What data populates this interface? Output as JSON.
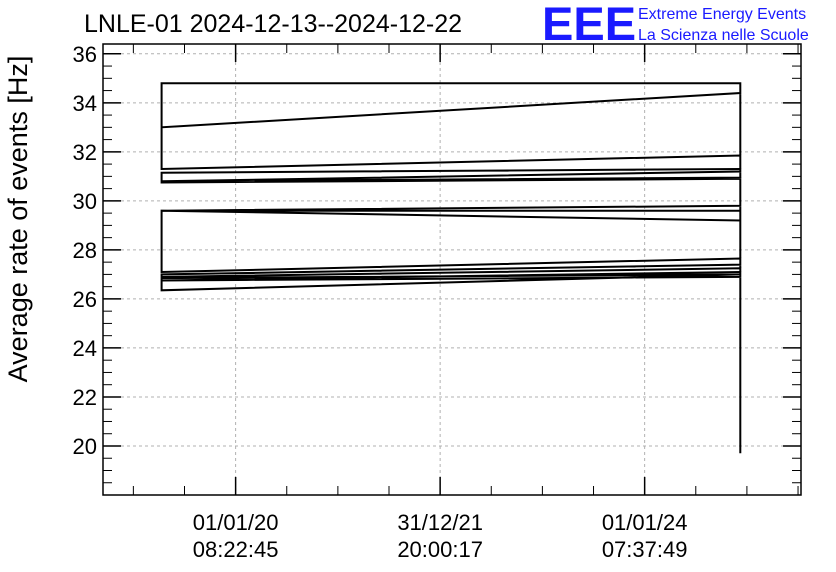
{
  "chart_data": {
    "type": "line",
    "title": "LNLE-01 2024-12-13--2024-12-22",
    "xlabel": "",
    "ylabel": "Average rate of events [Hz]",
    "ylim": [
      18,
      36.4
    ],
    "yticks": [
      20,
      22,
      24,
      26,
      28,
      30,
      32,
      34,
      36
    ],
    "xlim": [
      0,
      100
    ],
    "xticks": [
      {
        "x": 19,
        "line1": "01/01/20",
        "line2": "08:22:45"
      },
      {
        "x": 48.3,
        "line1": "31/12/21",
        "line2": "20:00:17"
      },
      {
        "x": 77.6,
        "line1": "01/01/24",
        "line2": "07:37:49"
      }
    ],
    "grid": true,
    "legend": "none",
    "line_color": "#000000",
    "series": [
      {
        "x": [
          8.4,
          8.4,
          91.3,
          91.3,
          8.4,
          8.4,
          91.3,
          91.3,
          8.4,
          8.4,
          91.3,
          91.3,
          8.4,
          8.4,
          91.3,
          91.3,
          8.4,
          8.4,
          91.3,
          91.3,
          8.4,
          8.4,
          91.3,
          91.3,
          8.4,
          8.4,
          91.3,
          91.3,
          8.4,
          8.4,
          91.3,
          91.3,
          8.4,
          8.4,
          91.3,
          91.3,
          91.3,
          91.3
        ],
        "y": [
          33.0,
          34.8,
          34.8,
          34.4,
          33.0,
          31.3,
          31.85,
          31.2,
          30.8,
          31.15,
          31.3,
          30.95,
          30.8,
          30.75,
          30.9,
          29.8,
          29.6,
          29.6,
          29.6,
          29.2,
          29.6,
          27.1,
          27.65,
          27.4,
          27.0,
          26.9,
          27.25,
          27.0,
          26.85,
          26.75,
          27.1,
          26.9,
          26.75,
          26.35,
          27.0,
          19.7,
          34.6,
          20.1
        ]
      }
    ]
  },
  "branding": {
    "logo_text": "EEE",
    "line1": "Extreme Energy Events",
    "line2": "La Scienza nelle Scuole"
  }
}
